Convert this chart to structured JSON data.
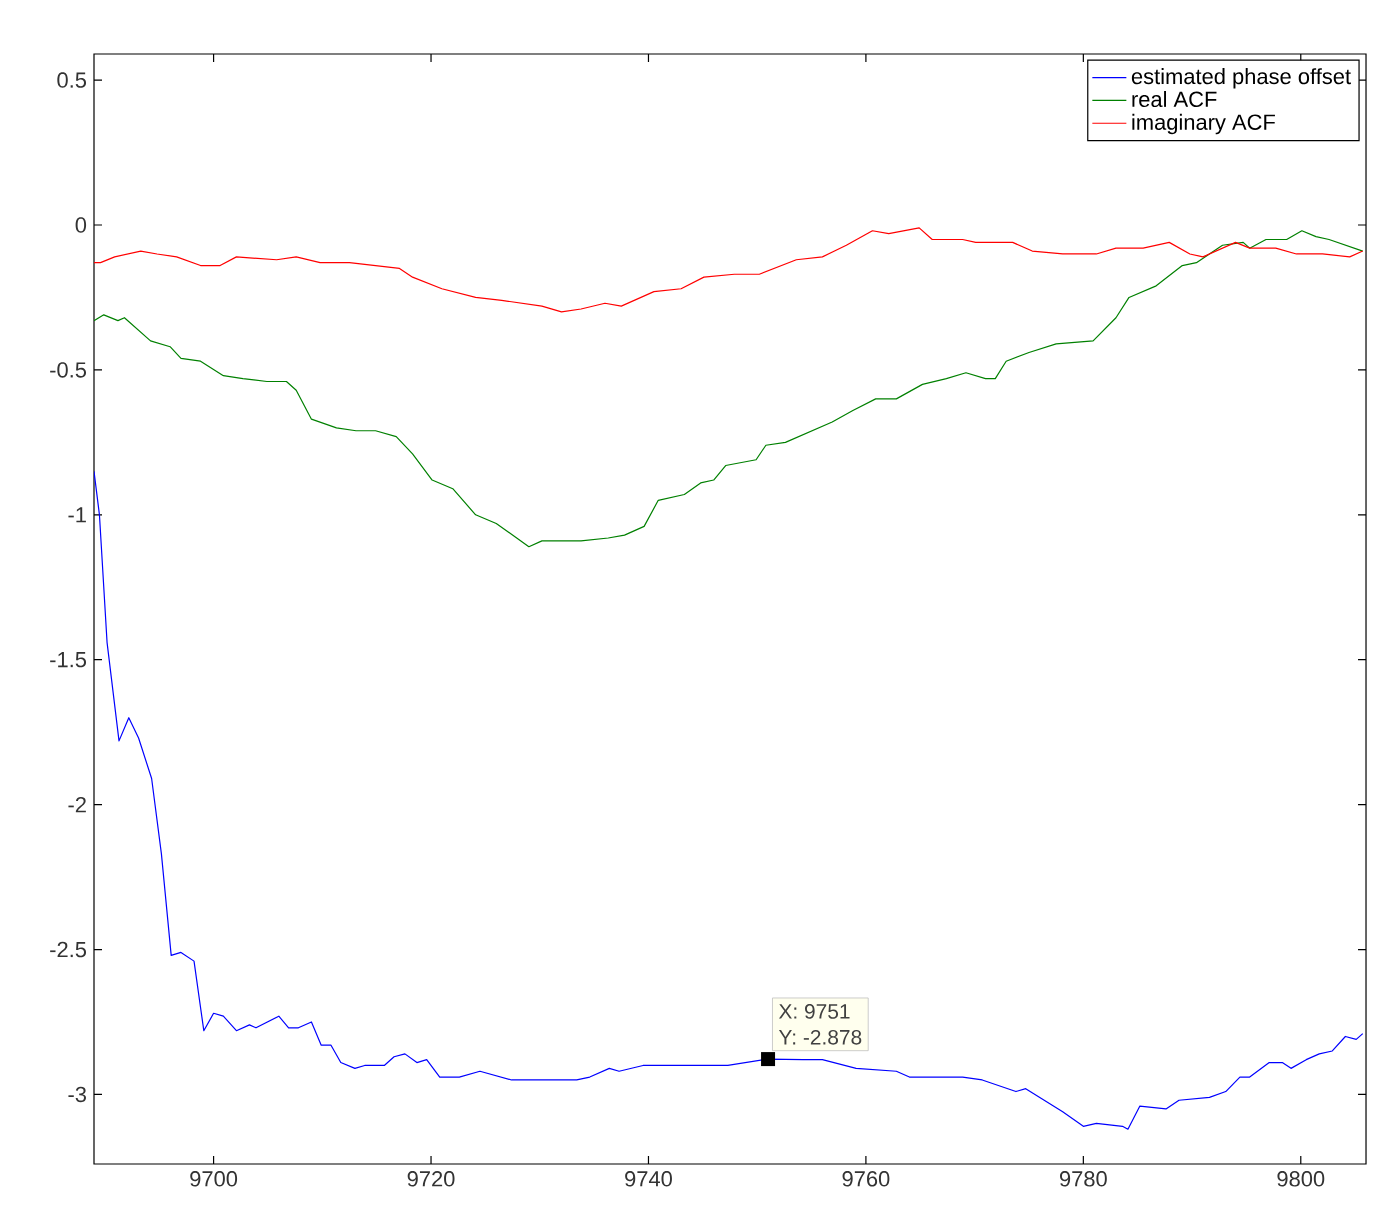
{
  "chart_data": {
    "type": "line",
    "xlim": [
      9689,
      9806
    ],
    "ylim": [
      -3.24,
      0.59
    ],
    "xticks": [
      9700,
      9720,
      9740,
      9760,
      9780,
      9800
    ],
    "yticks": [
      0.5,
      0,
      -0.5,
      -1,
      -1.5,
      -2,
      -2.5,
      -3
    ],
    "grid": false,
    "legend": "top right",
    "marker": "none",
    "line_style": "solid",
    "annotations": [
      {
        "text": "X: 9751",
        "x": 9751,
        "y": -2.878
      },
      {
        "text": "Y: -2.878",
        "x": 9751,
        "y": -2.878
      }
    ],
    "series": [
      {
        "name": "estimated phase offset",
        "color": "#0000ff",
        "x": [
          9689,
          9689.5,
          9690.2,
          9691.3,
          9692.2,
          9693.1,
          9694.3,
          9695.2,
          9696.1,
          9697,
          9698.2,
          9699.1,
          9700,
          9700.9,
          9702.1,
          9703.3,
          9703.9,
          9706,
          9706.9,
          9707.8,
          9709,
          9709.9,
          9710.8,
          9711.7,
          9713,
          9713.9,
          9715.7,
          9716.6,
          9717.6,
          9718.7,
          9719.6,
          9720.8,
          9722.6,
          9724.5,
          9727.4,
          9731,
          9733.4,
          9734.6,
          9736.4,
          9737.3,
          9739.5,
          9741.9,
          9747.3,
          9751,
          9754.2,
          9756,
          9759.1,
          9762.8,
          9764,
          9765.8,
          9768.9,
          9770.7,
          9773.8,
          9774.7,
          9778.1,
          9780,
          9781.2,
          9783.6,
          9784.1,
          9785.2,
          9787.6,
          9788.8,
          9791.6,
          9793.1,
          9794.4,
          9795.3,
          9797.1,
          9798.3,
          9799.1,
          9800.5,
          9801.7,
          9802.9,
          9804.1,
          9805.1,
          9805.7
        ],
        "values": [
          -0.85,
          -1.0,
          -1.44,
          -1.78,
          -1.7,
          -1.77,
          -1.91,
          -2.17,
          -2.52,
          -2.51,
          -2.54,
          -2.78,
          -2.72,
          -2.73,
          -2.78,
          -2.76,
          -2.77,
          -2.73,
          -2.77,
          -2.77,
          -2.75,
          -2.83,
          -2.83,
          -2.89,
          -2.91,
          -2.9,
          -2.9,
          -2.87,
          -2.86,
          -2.89,
          -2.88,
          -2.94,
          -2.94,
          -2.92,
          -2.95,
          -2.95,
          -2.95,
          -2.94,
          -2.91,
          -2.92,
          -2.9,
          -2.9,
          -2.9,
          -2.878,
          -2.88,
          -2.88,
          -2.91,
          -2.92,
          -2.94,
          -2.94,
          -2.94,
          -2.95,
          -2.99,
          -2.98,
          -3.06,
          -3.11,
          -3.1,
          -3.11,
          -3.12,
          -3.04,
          -3.05,
          -3.02,
          -3.01,
          -2.99,
          -2.94,
          -2.94,
          -2.89,
          -2.89,
          -2.91,
          -2.88,
          -2.86,
          -2.85,
          -2.8,
          -2.81,
          -2.79
        ]
      },
      {
        "name": "real ACF",
        "color": "#008000",
        "x": [
          9689,
          9689.9,
          9691.2,
          9691.8,
          9694.2,
          9696,
          9697,
          9698.8,
          9700.9,
          9702.7,
          9704.9,
          9706.7,
          9707.6,
          9709,
          9711.3,
          9713.1,
          9714.9,
          9716.8,
          9718.3,
          9720.1,
          9722,
          9724.1,
          9726,
          9729,
          9730.2,
          9733.8,
          9736.3,
          9737.8,
          9739.6,
          9740.9,
          9743.3,
          9744.8,
          9746,
          9747.1,
          9749.9,
          9750.8,
          9752.6,
          9756.9,
          9758.8,
          9760.9,
          9762.8,
          9765.2,
          9767.4,
          9769.2,
          9771,
          9771.9,
          9772.9,
          9775,
          9777.5,
          9780.9,
          9783,
          9784.2,
          9786.7,
          9789.1,
          9790.4,
          9792.8,
          9794.7,
          9795.3,
          9796.8,
          9798.7,
          9800.1,
          9801.4,
          9802.6,
          9805.7
        ],
        "values": [
          -0.33,
          -0.31,
          -0.33,
          -0.32,
          -0.4,
          -0.42,
          -0.46,
          -0.47,
          -0.52,
          -0.53,
          -0.54,
          -0.54,
          -0.57,
          -0.67,
          -0.7,
          -0.71,
          -0.71,
          -0.73,
          -0.79,
          -0.88,
          -0.91,
          -1.0,
          -1.03,
          -1.11,
          -1.09,
          -1.09,
          -1.08,
          -1.07,
          -1.04,
          -0.95,
          -0.93,
          -0.89,
          -0.88,
          -0.83,
          -0.81,
          -0.76,
          -0.75,
          -0.68,
          -0.64,
          -0.6,
          -0.6,
          -0.55,
          -0.53,
          -0.51,
          -0.53,
          -0.53,
          -0.47,
          -0.44,
          -0.41,
          -0.4,
          -0.32,
          -0.25,
          -0.21,
          -0.14,
          -0.13,
          -0.07,
          -0.06,
          -0.08,
          -0.05,
          -0.05,
          -0.02,
          -0.04,
          -0.05,
          -0.09
        ]
      },
      {
        "name": "imaginary ACF",
        "color": "#ff0000",
        "x": [
          9689,
          9689.6,
          9690.9,
          9692.1,
          9693.3,
          9694.8,
          9696.6,
          9698.8,
          9700.6,
          9702.1,
          9705.8,
          9707.6,
          9709.8,
          9712.5,
          9717.1,
          9718.3,
          9721,
          9724.1,
          9726.5,
          9730.2,
          9732,
          9733.8,
          9736,
          9737.5,
          9740.5,
          9743,
          9745.1,
          9747.9,
          9750.2,
          9753.6,
          9756,
          9758.2,
          9760.6,
          9762.1,
          9764.9,
          9766.1,
          9768.9,
          9770.1,
          9773.5,
          9775.3,
          9778.1,
          9781.2,
          9783,
          9785.5,
          9787.9,
          9789.8,
          9791,
          9794,
          9795.3,
          9797.7,
          9799.6,
          9802,
          9804.5,
          9805.7
        ],
        "values": [
          -0.13,
          -0.13,
          -0.11,
          -0.1,
          -0.09,
          -0.1,
          -0.11,
          -0.14,
          -0.14,
          -0.11,
          -0.12,
          -0.11,
          -0.13,
          -0.13,
          -0.15,
          -0.18,
          -0.22,
          -0.25,
          -0.26,
          -0.28,
          -0.3,
          -0.29,
          -0.27,
          -0.28,
          -0.23,
          -0.22,
          -0.18,
          -0.17,
          -0.17,
          -0.12,
          -0.11,
          -0.07,
          -0.02,
          -0.03,
          -0.01,
          -0.05,
          -0.05,
          -0.06,
          -0.06,
          -0.09,
          -0.1,
          -0.1,
          -0.08,
          -0.08,
          -0.06,
          -0.1,
          -0.11,
          -0.06,
          -0.08,
          -0.08,
          -0.1,
          -0.1,
          -0.11,
          -0.09
        ]
      }
    ]
  }
}
